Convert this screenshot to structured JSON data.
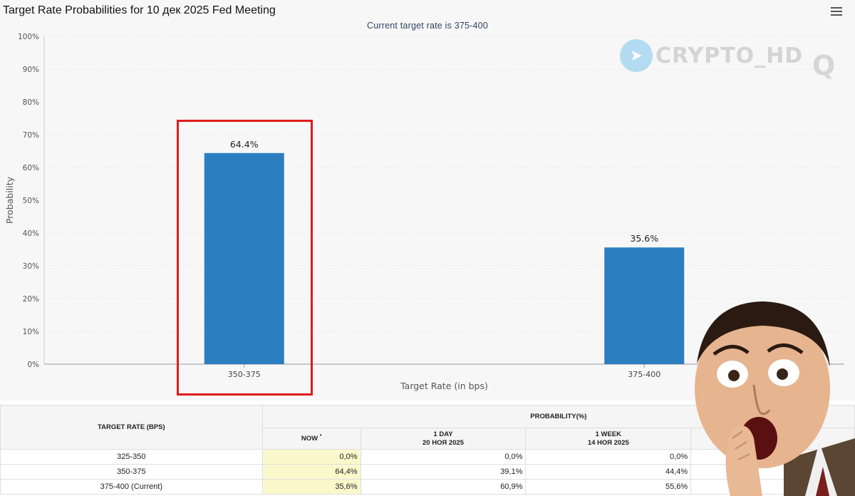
{
  "header": {
    "title": "Target Rate Probabilities for 10 дек 2025 Fed Meeting",
    "subtitle": "Current target rate is 375-400"
  },
  "watermark": {
    "text": "CRYPTO_HD",
    "mark": "Q"
  },
  "chart_data": {
    "type": "bar",
    "title": "Target Rate Probabilities for 10 дек 2025 Fed Meeting",
    "subtitle": "Current target rate is 375-400",
    "categories": [
      "350-375",
      "375-400"
    ],
    "values": [
      64.4,
      35.6
    ],
    "value_labels": [
      "64.4%",
      "35.6%"
    ],
    "xlabel": "Target Rate (in bps)",
    "ylabel": "Probability",
    "ylim": [
      0,
      100
    ],
    "yticks": [
      0,
      10,
      20,
      30,
      40,
      50,
      60,
      70,
      80,
      90,
      100
    ],
    "ytick_labels": [
      "0%",
      "10%",
      "20%",
      "30%",
      "40%",
      "50%",
      "60%",
      "70%",
      "80%",
      "90%",
      "100%"
    ],
    "bar_color": "#2b7fc1",
    "highlight_color": "#e01b1b",
    "highlighted_category": "350-375",
    "grid": true
  },
  "table": {
    "col_target": "TARGET RATE (BPS)",
    "col_prob": "PROBABILITY(%)",
    "col_now": "NOW",
    "col_now_mark": "*",
    "col_day": "1 DAY",
    "col_day_date": "20 НОЯ 2025",
    "col_week": "1 WEEK",
    "col_week_date": "14 НОЯ 2025",
    "rows": [
      {
        "rate": "325-350",
        "now": "0,0%",
        "day": "0,0%",
        "week": "0,0%"
      },
      {
        "rate": "350-375",
        "now": "64,4%",
        "day": "39,1%",
        "week": "44,4%"
      },
      {
        "rate": "375-400 (Current)",
        "now": "35,6%",
        "day": "60,9%",
        "week": "55,6%"
      }
    ]
  }
}
